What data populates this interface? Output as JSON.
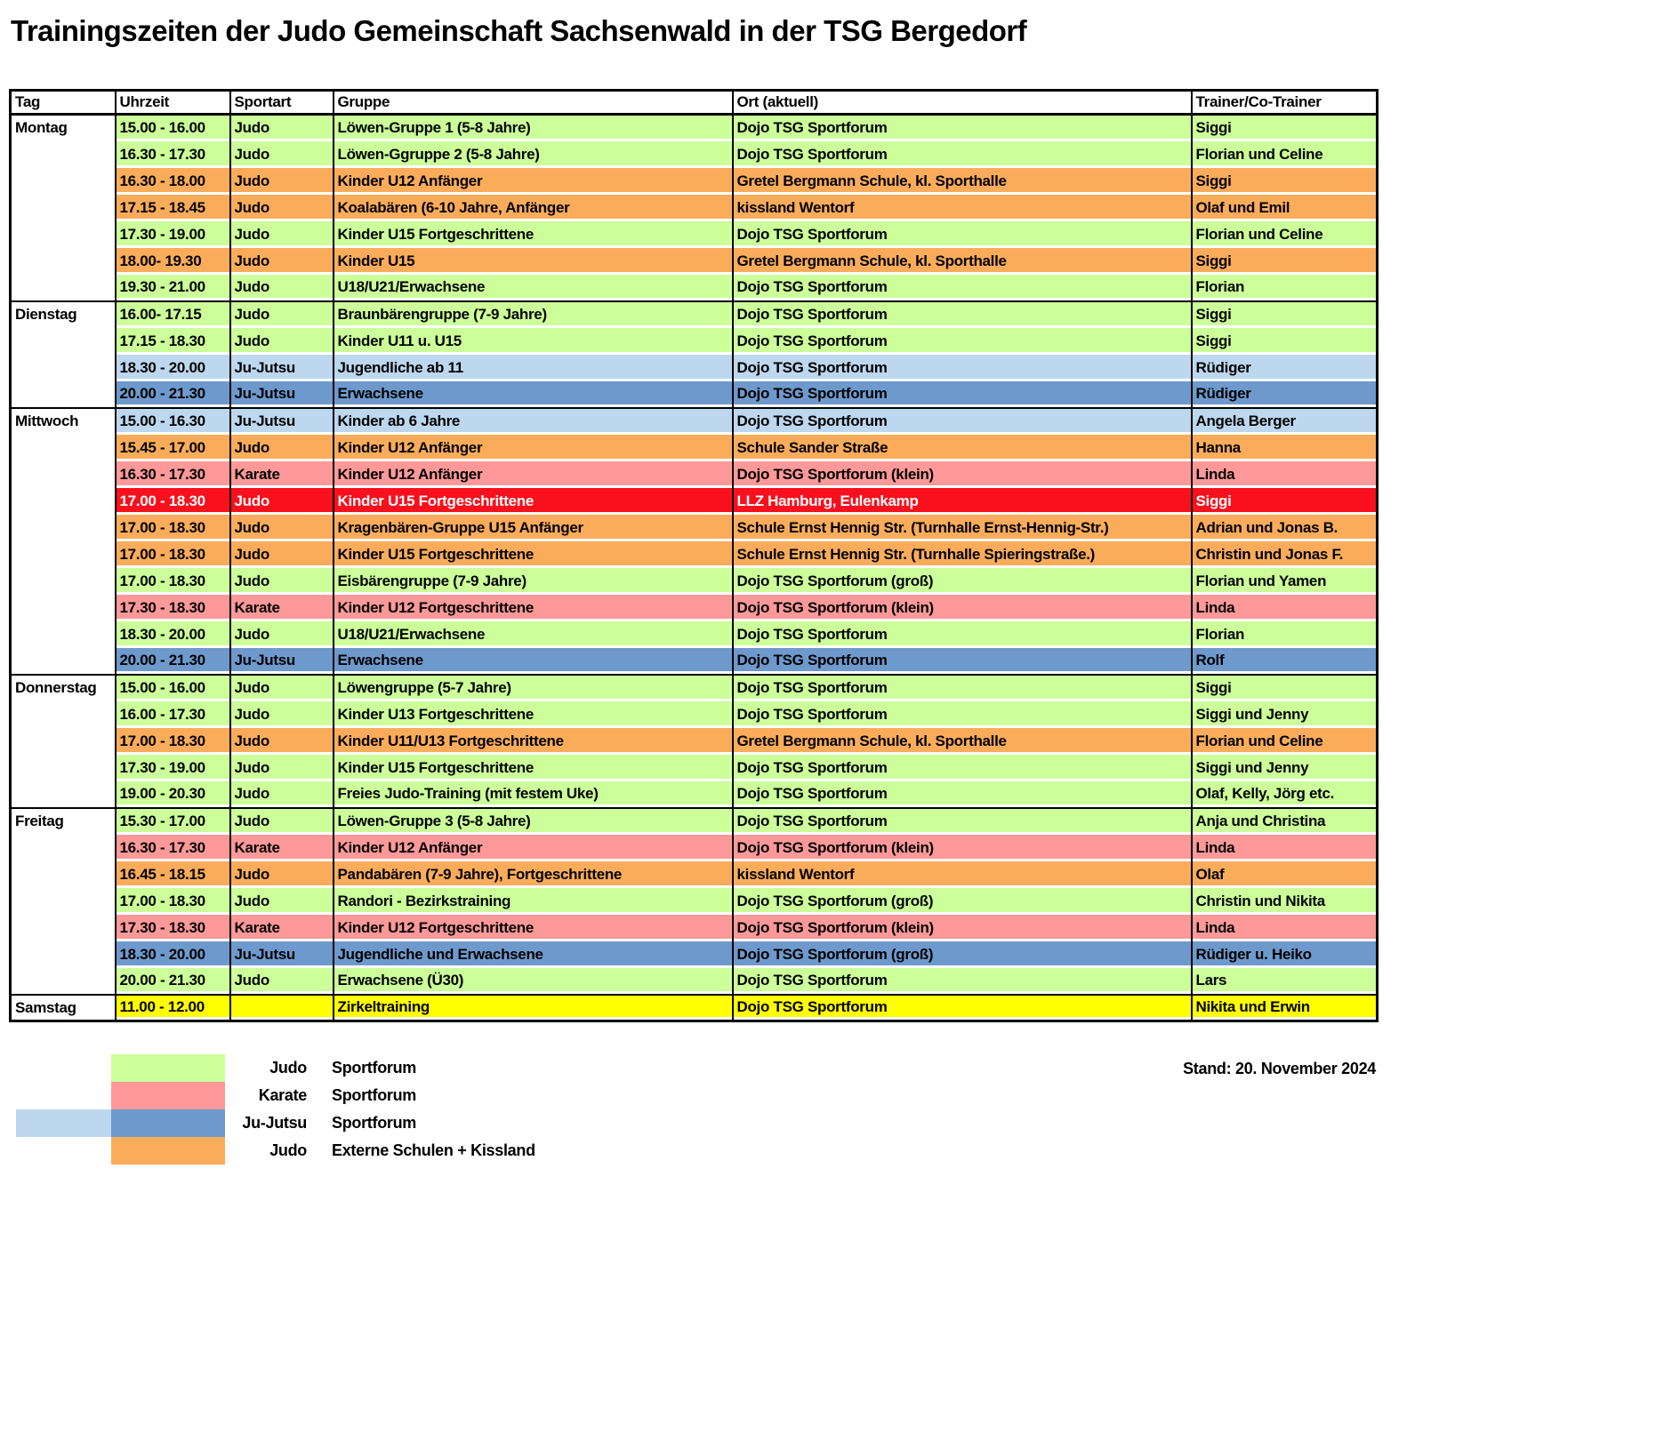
{
  "title": "Trainingszeiten der Judo Gemeinschaft Sachsenwald in der TSG Bergedorf",
  "stand": "Stand: 20. November 2024",
  "columns": [
    "Tag",
    "Uhrzeit",
    "Sportart",
    "Gruppe",
    "Ort (aktuell)",
    "Trainer/Co-Trainer"
  ],
  "colors": {
    "green": "#CCFF99",
    "orange": "#FAAC5B",
    "pink": "#FF9999",
    "light_blue": "#BDD7EE",
    "dark_blue": "#6E99CC",
    "red": "#F8101C",
    "yellow": "#FFFF00",
    "red_text": "#FFFFFF"
  },
  "days": [
    {
      "day": "Montag",
      "rows": [
        {
          "time": "15.00 - 16.00",
          "sport": "Judo",
          "group": "Löwen-Gruppe 1 (5-8 Jahre)",
          "ort": "Dojo TSG Sportforum",
          "trainer": "Siggi",
          "color": "green"
        },
        {
          "time": "16.30 - 17.30",
          "sport": "Judo",
          "group": "Löwen-Ggruppe 2  (5-8 Jahre)",
          "ort": "Dojo TSG Sportforum",
          "trainer": "Florian und Celine",
          "color": "green"
        },
        {
          "time": "16.30 - 18.00",
          "sport": "Judo",
          "group": "Kinder U12 Anfänger",
          "ort": "Gretel Bergmann Schule, kl. Sporthalle",
          "trainer": "Siggi",
          "color": "orange"
        },
        {
          "time": "17.15 - 18.45",
          "sport": "Judo",
          "group": "Koalabären (6-10 Jahre, Anfänger",
          "ort": "kissland Wentorf",
          "trainer": "Olaf und Emil",
          "color": "orange"
        },
        {
          "time": "17.30 - 19.00",
          "sport": "Judo",
          "group": "Kinder U15 Fortgeschrittene",
          "ort": "Dojo TSG Sportforum",
          "trainer": "Florian und Celine",
          "color": "green"
        },
        {
          "time": "18.00- 19.30",
          "sport": "Judo",
          "group": "Kinder U15",
          "ort": "Gretel Bergmann Schule, kl. Sporthalle",
          "trainer": "Siggi",
          "color": "orange"
        },
        {
          "time": "19.30 - 21.00",
          "sport": "Judo",
          "group": "U18/U21/Erwachsene",
          "ort": "Dojo TSG Sportforum",
          "trainer": "Florian",
          "color": "green"
        }
      ]
    },
    {
      "day": "Dienstag",
      "rows": [
        {
          "time": "16.00- 17.15",
          "sport": "Judo",
          "group": "Braunbärengruppe (7-9 Jahre)",
          "ort": "Dojo TSG Sportforum",
          "trainer": "Siggi",
          "color": "green"
        },
        {
          "time": "17.15 - 18.30",
          "sport": "Judo",
          "group": "Kinder  U11 u. U15",
          "ort": "Dojo TSG Sportforum",
          "trainer": "Siggi",
          "color": "green"
        },
        {
          "time": "18.30 - 20.00",
          "sport": "Ju-Jutsu",
          "group": "Jugendliche ab 11",
          "ort": "Dojo TSG Sportforum",
          "trainer": "Rüdiger",
          "color": "light_blue"
        },
        {
          "time": "20.00 - 21.30",
          "sport": "Ju-Jutsu",
          "group": "Erwachsene",
          "ort": "Dojo TSG Sportforum",
          "trainer": "Rüdiger",
          "color": "dark_blue"
        }
      ]
    },
    {
      "day": "Mittwoch",
      "rows": [
        {
          "time": "15.00 - 16.30",
          "sport": "Ju-Jutsu",
          "group": "Kinder ab 6 Jahre",
          "ort": "Dojo TSG Sportforum",
          "trainer": "Angela Berger",
          "color": "light_blue"
        },
        {
          "time": "15.45 - 17.00",
          "sport": "Judo",
          "group": "Kinder U12 Anfänger",
          "ort": "Schule Sander Straße",
          "trainer": "Hanna",
          "color": "orange"
        },
        {
          "time": "16.30 - 17.30",
          "sport": "Karate",
          "group": "Kinder U12 Anfänger",
          "ort": "Dojo TSG Sportforum (klein)",
          "trainer": "Linda",
          "color": "pink"
        },
        {
          "time": "17.00 - 18.30",
          "sport": "Judo",
          "group": "Kinder U15 Fortgeschrittene",
          "ort": "LLZ Hamburg, Eulenkamp",
          "trainer": "Siggi",
          "color": "red",
          "text": "#FFFFFF"
        },
        {
          "time": "17.00 - 18.30",
          "sport": "Judo",
          "group": "Kragenbären-Gruppe U15 Anfänger",
          "ort": "Schule Ernst Hennig Str. (Turnhalle Ernst-Hennig-Str.)",
          "trainer": "Adrian und Jonas B.",
          "color": "orange"
        },
        {
          "time": "17.00 - 18.30",
          "sport": "Judo",
          "group": "Kinder U15 Fortgeschrittene",
          "ort": "Schule Ernst Hennig Str. (Turnhalle Spieringstraße.)",
          "trainer": "Christin und Jonas F.",
          "color": "orange"
        },
        {
          "time": "17.00 - 18.30",
          "sport": "Judo",
          "group": "Eisbärengruppe (7-9 Jahre)",
          "ort": "Dojo TSG Sportforum (groß)",
          "trainer": "Florian und Yamen",
          "color": "green"
        },
        {
          "time": "17.30 - 18.30",
          "sport": "Karate",
          "group": "Kinder U12 Fortgeschrittene",
          "ort": "Dojo TSG Sportforum (klein)",
          "trainer": "Linda",
          "color": "pink"
        },
        {
          "time": "18.30 - 20.00",
          "sport": "Judo",
          "group": "U18/U21/Erwachsene",
          "ort": "Dojo TSG Sportforum",
          "trainer": "Florian",
          "color": "green"
        },
        {
          "time": "20.00 - 21.30",
          "sport": "Ju-Jutsu",
          "group": "Erwachsene",
          "ort": "Dojo TSG Sportforum",
          "trainer": "Rolf",
          "color": "dark_blue"
        }
      ]
    },
    {
      "day": "Donnerstag",
      "rows": [
        {
          "time": "15.00 - 16.00",
          "sport": "Judo",
          "group": "Löwengruppe (5-7 Jahre)",
          "ort": "Dojo TSG Sportforum",
          "trainer": "Siggi",
          "color": "green"
        },
        {
          "time": "16.00 - 17.30",
          "sport": "Judo",
          "group": "Kinder U13 Fortgeschrittene",
          "ort": "Dojo TSG Sportforum",
          "trainer": "Siggi und Jenny",
          "color": "green"
        },
        {
          "time": "17.00 - 18.30",
          "sport": "Judo",
          "group": "Kinder U11/U13 Fortgeschrittene",
          "ort": "Gretel Bergmann Schule, kl. Sporthalle",
          "trainer": "Florian und Celine",
          "color": "orange"
        },
        {
          "time": "17.30 - 19.00",
          "sport": "Judo",
          "group": "Kinder U15 Fortgeschrittene",
          "ort": "Dojo TSG Sportforum",
          "trainer": "Siggi und Jenny",
          "color": "green"
        },
        {
          "time": "19.00 - 20.30",
          "sport": "Judo",
          "group": "Freies Judo-Training (mit festem Uke)",
          "ort": "Dojo TSG Sportforum",
          "trainer": "Olaf, Kelly, Jörg etc.",
          "color": "green"
        }
      ]
    },
    {
      "day": "Freitag",
      "rows": [
        {
          "time": "15.30 - 17.00",
          "sport": "Judo",
          "group": "Löwen-Gruppe 3 (5-8 Jahre)",
          "ort": "Dojo TSG Sportforum",
          "trainer": "Anja und Christina",
          "color": "green"
        },
        {
          "time": "16.30 - 17.30",
          "sport": "Karate",
          "group": "Kinder U12 Anfänger",
          "ort": "Dojo TSG Sportforum (klein)",
          "trainer": "Linda",
          "color": "pink"
        },
        {
          "time": "16.45 - 18.15",
          "sport": "Judo",
          "group": "Pandabären (7-9 Jahre), Fortgeschrittene",
          "ort": "kissland Wentorf",
          "trainer": "Olaf",
          "color": "orange"
        },
        {
          "time": "17.00 - 18.30",
          "sport": "Judo",
          "group": "Randori - Bezirkstraining",
          "ort": "Dojo TSG Sportforum (groß)",
          "trainer": "Christin und Nikita",
          "color": "green"
        },
        {
          "time": "17.30 - 18.30",
          "sport": "Karate",
          "group": "Kinder U12 Fortgeschrittene",
          "ort": "Dojo TSG Sportforum (klein)",
          "trainer": "Linda",
          "color": "pink"
        },
        {
          "time": "18.30 - 20.00",
          "sport": "Ju-Jutsu",
          "group": "Jugendliche und Erwachsene",
          "ort": "Dojo TSG Sportforum (groß)",
          "trainer": "Rüdiger u. Heiko",
          "color": "dark_blue"
        },
        {
          "time": "20.00 - 21.30",
          "sport": "Judo",
          "group": "Erwachsene (Ü30)",
          "ort": "Dojo TSG Sportforum",
          "trainer": "Lars",
          "color": "green"
        }
      ]
    },
    {
      "day": "Samstag",
      "rows": [
        {
          "time": "11.00 - 12.00",
          "sport": "",
          "group": "Zirkeltraining",
          "ort": "Dojo TSG Sportforum",
          "trainer": "Nikita und Erwin",
          "color": "yellow"
        }
      ]
    }
  ],
  "legend": [
    {
      "sport": "Judo",
      "location": "Sportforum",
      "swatch": "green"
    },
    {
      "sport": "Karate",
      "location": "Sportforum",
      "swatch": "pink"
    },
    {
      "sport": "Ju-Jutsu",
      "location": "Sportforum",
      "swatch": "dark_blue",
      "swatch_extra": "light_blue"
    },
    {
      "sport": "Judo",
      "location": "Externe Schulen + Kissland",
      "swatch": "orange"
    }
  ]
}
